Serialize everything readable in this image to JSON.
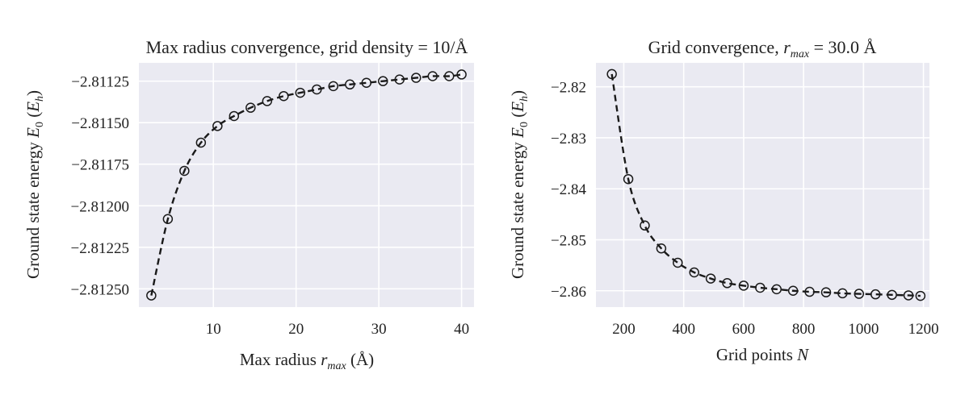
{
  "chart_data": [
    {
      "type": "line",
      "title": "Max radius convergence, grid density = 10/Å",
      "xlabel": "Max radius r_max (Å)",
      "ylabel": "Ground state energy E0 (Eh)",
      "x_ticks": [
        "10",
        "20",
        "30",
        "40"
      ],
      "y_ticks": [
        "−2.81250",
        "−2.81225",
        "−2.81200",
        "−2.81175",
        "−2.81150",
        "−2.81125"
      ],
      "xlim": [
        1.0,
        41.5
      ],
      "ylim": [
        -2.81261,
        -2.81114
      ],
      "x_tick_values": [
        10,
        20,
        30,
        40
      ],
      "y_tick_values": [
        -2.8125,
        -2.81225,
        -2.812,
        -2.81175,
        -2.8115,
        -2.81125
      ],
      "grid": true,
      "legend": "none",
      "line_style": "dashed",
      "marker": "open-circle",
      "series": [
        {
          "x": [
            2.5,
            4.5,
            6.5,
            8.5,
            10.5,
            12.5,
            14.5,
            16.5,
            18.5,
            20.5,
            22.5,
            24.5,
            26.5,
            28.5,
            30.5,
            32.5,
            34.5,
            36.5,
            38.5,
            40.0
          ],
          "y": [
            -2.81254,
            -2.81208,
            -2.81179,
            -2.81162,
            -2.81152,
            -2.81146,
            -2.81141,
            -2.81137,
            -2.81134,
            -2.81132,
            -2.8113,
            -2.81128,
            -2.81127,
            -2.81126,
            -2.81125,
            -2.81124,
            -2.81123,
            -2.81122,
            -2.81122,
            -2.81121
          ]
        }
      ]
    },
    {
      "type": "line",
      "title": "Grid convergence, r_max = 30.0 Å",
      "xlabel": "Grid points N",
      "ylabel": "Ground state energy E0 (Eh)",
      "x_ticks": [
        "200",
        "400",
        "600",
        "800",
        "1000",
        "1200"
      ],
      "y_ticks": [
        "−2.86",
        "−2.85",
        "−2.84",
        "−2.83",
        "−2.82"
      ],
      "xlim": [
        107,
        1220
      ],
      "ylim": [
        -2.8632,
        -2.8153
      ],
      "x_tick_values": [
        200,
        400,
        600,
        800,
        1000,
        1200
      ],
      "y_tick_values": [
        -2.86,
        -2.85,
        -2.84,
        -2.83,
        -2.82
      ],
      "grid": true,
      "legend": "none",
      "line_style": "dashed",
      "marker": "open-circle",
      "series": [
        {
          "x": [
            160,
            215,
            270,
            325,
            380,
            435,
            490,
            545,
            600,
            655,
            710,
            765,
            820,
            875,
            930,
            985,
            1040,
            1095,
            1150,
            1190
          ],
          "y": [
            -2.8175,
            -2.8381,
            -2.8472,
            -2.8517,
            -2.8545,
            -2.8564,
            -2.8576,
            -2.8585,
            -2.859,
            -2.8594,
            -2.8597,
            -2.86,
            -2.8602,
            -2.8603,
            -2.8605,
            -2.8606,
            -2.8607,
            -2.8608,
            -2.8609,
            -2.861
          ]
        }
      ]
    }
  ]
}
